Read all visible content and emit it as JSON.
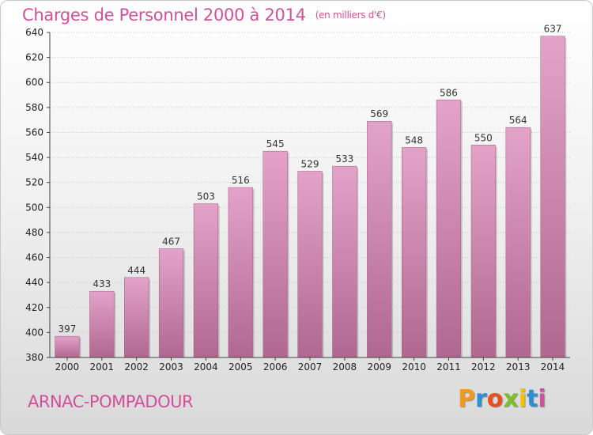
{
  "title": "Charges de Personnel 2000 à 2014",
  "subtitle": "(en milliers d'€)",
  "commune": "ARNAC-POMPADOUR",
  "logo": [
    "P",
    "r",
    "o",
    "x",
    "i",
    "t",
    "i"
  ],
  "colors": {
    "bar": "#d88ab8",
    "bar_dark": "#b85e93",
    "title": "#d2509a"
  },
  "chart_data": {
    "type": "bar",
    "categories": [
      "2000",
      "2001",
      "2002",
      "2003",
      "2004",
      "2005",
      "2006",
      "2007",
      "2008",
      "2009",
      "2010",
      "2011",
      "2012",
      "2013",
      "2014"
    ],
    "values": [
      397,
      433,
      444,
      467,
      503,
      516,
      545,
      529,
      533,
      569,
      548,
      586,
      550,
      564,
      637
    ],
    "ylim": [
      380,
      640
    ],
    "yticks": [
      380,
      400,
      420,
      440,
      460,
      480,
      500,
      520,
      540,
      560,
      580,
      600,
      620,
      640
    ],
    "grid": true
  }
}
